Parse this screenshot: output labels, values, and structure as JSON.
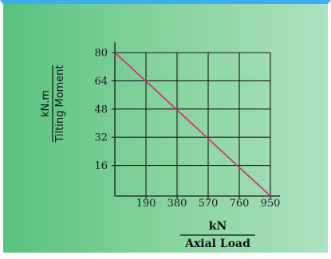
{
  "chart_data": {
    "type": "line",
    "x": [
      0,
      950
    ],
    "series": [
      {
        "values": [
          80,
          0
        ]
      }
    ],
    "x_ticks": [
      "190",
      "380",
      "570",
      "760",
      "950"
    ],
    "y_ticks": [
      "80",
      "64",
      "48",
      "32",
      "16"
    ],
    "xlabel_unit": "kN",
    "xlabel": "Axial Load",
    "ylabel_unit": "kN.m",
    "ylabel": "Tilting Moment",
    "xlim": [
      0,
      950
    ],
    "ylim": [
      0,
      80
    ],
    "grid": true,
    "line_color": "#d6247a",
    "grid_color": "#1a1a1a"
  }
}
